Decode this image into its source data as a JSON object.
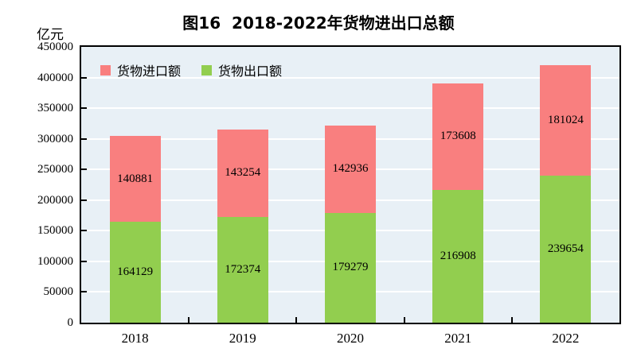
{
  "chart_data": {
    "type": "bar",
    "stacked": true,
    "title": "图16  2018-2022年货物进出口总额",
    "unit_label": "亿元",
    "categories": [
      "2018",
      "2019",
      "2020",
      "2021",
      "2022"
    ],
    "series": [
      {
        "name": "货物出口额",
        "color": "#92CE4F",
        "values": [
          164129,
          172374,
          179279,
          216908,
          239654
        ]
      },
      {
        "name": "货物进口额",
        "color": "#F97F7F",
        "values": [
          140881,
          143254,
          142936,
          173608,
          181024
        ]
      }
    ],
    "legend": {
      "position": "top-left-inside",
      "items": [
        {
          "label": "货物进口额",
          "color": "#F97F7F"
        },
        {
          "label": "货物出口额",
          "color": "#92CE4F"
        }
      ]
    },
    "ylim": [
      0,
      450000
    ],
    "ytick_step": 50000,
    "ytick_labels": [
      "0",
      "50000",
      "100000",
      "150000",
      "200000",
      "250000",
      "300000",
      "350000",
      "400000",
      "450000"
    ],
    "grid": true,
    "grid_color": "#FFFFFF",
    "plot_background": "#E8F0F6",
    "value_labels": true
  }
}
